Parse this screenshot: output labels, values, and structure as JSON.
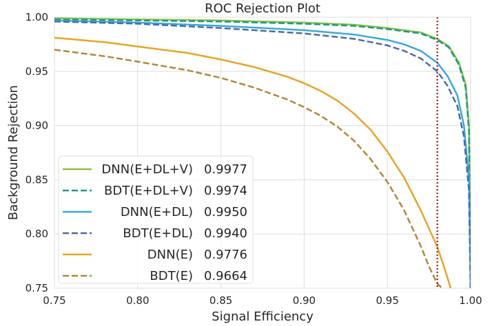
{
  "chart_data": {
    "type": "line",
    "title": "ROC Rejection Plot",
    "xlabel": "Signal Efficiency",
    "ylabel": "Background Rejection",
    "xlim": [
      0.75,
      1.0
    ],
    "ylim": [
      0.75,
      1.0
    ],
    "xticks": [
      "0.75",
      "0.80",
      "0.85",
      "0.90",
      "0.95",
      "1.00"
    ],
    "yticks": [
      "0.75",
      "0.80",
      "0.85",
      "0.90",
      "0.95",
      "1.00"
    ],
    "grid": true,
    "legend_position": "lower-left",
    "reference_line": {
      "x": 0.98,
      "color": "#a52a2a",
      "style": "dotted"
    },
    "series": [
      {
        "name": "DNN(E+DL+V)",
        "score": "0.9977",
        "color": "#8cbf3f",
        "dash": "solid",
        "x": [
          0.75,
          0.8,
          0.85,
          0.9,
          0.93,
          0.95,
          0.97,
          0.98,
          0.987,
          0.993,
          0.997,
          0.999,
          1.0
        ],
        "y": [
          0.999,
          0.998,
          0.997,
          0.995,
          0.993,
          0.99,
          0.986,
          0.98,
          0.973,
          0.958,
          0.938,
          0.9,
          0.75
        ]
      },
      {
        "name": "BDT(E+DL+V)",
        "score": "0.9974",
        "color": "#1a9a8a",
        "dash": "dashed",
        "x": [
          0.75,
          0.8,
          0.85,
          0.9,
          0.93,
          0.95,
          0.97,
          0.98,
          0.987,
          0.993,
          0.997,
          0.999,
          1.0
        ],
        "y": [
          0.998,
          0.997,
          0.996,
          0.994,
          0.992,
          0.989,
          0.985,
          0.979,
          0.972,
          0.956,
          0.935,
          0.895,
          0.75
        ]
      },
      {
        "name": "DNN(E+DL)",
        "score": "0.9950",
        "color": "#3aa8de",
        "dash": "solid",
        "x": [
          0.75,
          0.8,
          0.85,
          0.9,
          0.93,
          0.95,
          0.96,
          0.97,
          0.98,
          0.986,
          0.992,
          0.996,
          0.999,
          1.0
        ],
        "y": [
          0.997,
          0.995,
          0.992,
          0.988,
          0.984,
          0.979,
          0.975,
          0.969,
          0.958,
          0.946,
          0.928,
          0.9,
          0.85,
          0.75
        ]
      },
      {
        "name": "BDT(E+DL)",
        "score": "0.9940",
        "color": "#4a6aaa",
        "dash": "dashed",
        "x": [
          0.75,
          0.8,
          0.85,
          0.9,
          0.93,
          0.95,
          0.96,
          0.97,
          0.98,
          0.986,
          0.992,
          0.996,
          0.999,
          1.0
        ],
        "y": [
          0.996,
          0.994,
          0.99,
          0.985,
          0.98,
          0.974,
          0.969,
          0.962,
          0.95,
          0.937,
          0.918,
          0.89,
          0.84,
          0.75
        ]
      },
      {
        "name": "DNN(E)",
        "score": "0.9776",
        "color": "#e8a424",
        "dash": "solid",
        "x": [
          0.75,
          0.78,
          0.8,
          0.83,
          0.85,
          0.87,
          0.89,
          0.9,
          0.91,
          0.92,
          0.93,
          0.94,
          0.95,
          0.96,
          0.97,
          0.98,
          0.985,
          0.988
        ],
        "y": [
          0.981,
          0.977,
          0.973,
          0.967,
          0.961,
          0.954,
          0.945,
          0.939,
          0.932,
          0.923,
          0.911,
          0.896,
          0.876,
          0.852,
          0.822,
          0.788,
          0.765,
          0.75
        ]
      },
      {
        "name": "BDT(E)",
        "score": "0.9664",
        "color": "#b08838",
        "dash": "dashed",
        "x": [
          0.75,
          0.78,
          0.8,
          0.83,
          0.85,
          0.87,
          0.89,
          0.9,
          0.91,
          0.92,
          0.93,
          0.94,
          0.95,
          0.96,
          0.97,
          0.975,
          0.98,
          0.983
        ],
        "y": [
          0.97,
          0.964,
          0.959,
          0.951,
          0.944,
          0.935,
          0.924,
          0.917,
          0.909,
          0.899,
          0.886,
          0.869,
          0.848,
          0.822,
          0.789,
          0.77,
          0.754,
          0.75
        ]
      }
    ]
  }
}
